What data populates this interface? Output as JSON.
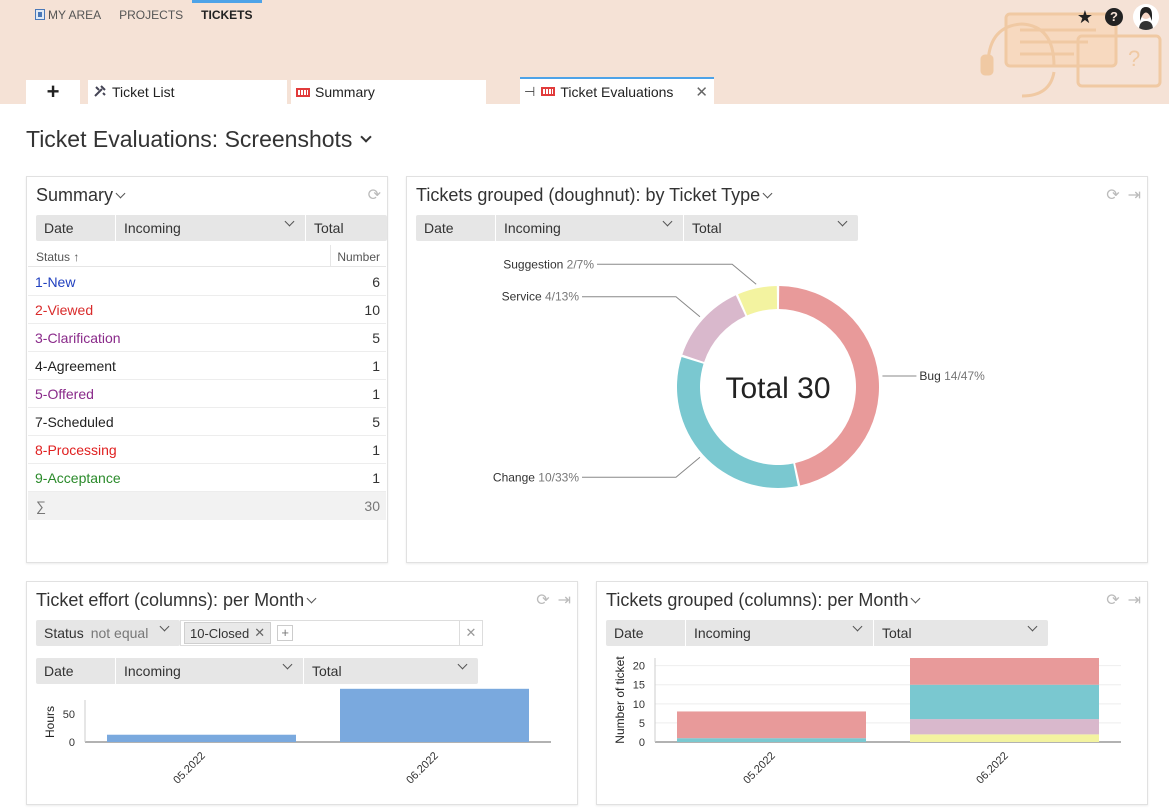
{
  "topnav": {
    "items": [
      {
        "label": "MY AREA"
      },
      {
        "label": "PROJECTS"
      },
      {
        "label": "TICKETS"
      }
    ]
  },
  "tabs": {
    "add_label": "+",
    "items": [
      {
        "label": "Ticket List"
      },
      {
        "label": "Summary"
      },
      {
        "label": "Ticket Evaluations"
      }
    ]
  },
  "page": {
    "title": "Ticket Evaluations: Screenshots"
  },
  "summary_panel": {
    "title": "Summary",
    "filter": {
      "date": "Date",
      "incoming": "Incoming",
      "total": "Total"
    },
    "columns": {
      "status": "Status",
      "number": "Number"
    },
    "rows": [
      {
        "status": "1-New",
        "number": "6",
        "color": "#1f3fbf"
      },
      {
        "status": "2-Viewed",
        "number": "10",
        "color": "#d92b2b"
      },
      {
        "status": "3-Clarification",
        "number": "5",
        "color": "#8a2a8a"
      },
      {
        "status": "4-Agreement",
        "number": "1",
        "color": "#222222"
      },
      {
        "status": "5-Offered",
        "number": "1",
        "color": "#8a2a8a"
      },
      {
        "status": "7-Scheduled",
        "number": "5",
        "color": "#222222"
      },
      {
        "status": "8-Processing",
        "number": "1",
        "color": "#e02020"
      },
      {
        "status": "9-Acceptance",
        "number": "1",
        "color": "#2a8a2a"
      }
    ],
    "total": {
      "symbol": "∑",
      "number": "30"
    }
  },
  "doughnut_panel": {
    "title": "Tickets grouped (doughnut): by Ticket Type",
    "filter": {
      "date": "Date",
      "incoming": "Incoming",
      "total": "Total"
    },
    "center_label": "Total 30"
  },
  "effort_panel": {
    "title": "Ticket effort (columns): per Month",
    "status_filter": {
      "field": "Status",
      "operator": "not equal",
      "tag": "10-Closed"
    },
    "filter": {
      "date": "Date",
      "incoming": "Incoming",
      "total": "Total"
    }
  },
  "grouped_panel": {
    "title": "Tickets grouped (columns): per Month",
    "filter": {
      "date": "Date",
      "incoming": "Incoming",
      "total": "Total"
    }
  },
  "chart_data": [
    {
      "type": "pie",
      "title": "",
      "slices": [
        {
          "name": "Bug",
          "value": 14,
          "label": "14/47%",
          "color": "#e89a9a"
        },
        {
          "name": "Change",
          "value": 10,
          "label": "10/33%",
          "color": "#7ac8d0"
        },
        {
          "name": "Service",
          "value": 4,
          "label": "4/13%",
          "color": "#d9b8cc"
        },
        {
          "name": "Suggestion",
          "value": 2,
          "label": "2/7%",
          "color": "#f3f3a0"
        }
      ],
      "center_text": "Total 30"
    },
    {
      "type": "bar",
      "categories": [
        "05.2022",
        "06.2022"
      ],
      "values": [
        13,
        95
      ],
      "ylabel": "Hours",
      "ylim": [
        0,
        100
      ],
      "yticks": [
        0,
        50
      ],
      "color": "#7aa9de"
    },
    {
      "type": "bar",
      "stacked": true,
      "categories": [
        "05.2022",
        "06.2022"
      ],
      "series": [
        {
          "values": [
            0,
            2
          ],
          "color": "#f3f3a0"
        },
        {
          "values": [
            0,
            4
          ],
          "color": "#d9b8cc"
        },
        {
          "values": [
            1,
            9
          ],
          "color": "#7ac8d0"
        },
        {
          "values": [
            7,
            7
          ],
          "color": "#e89a9a"
        }
      ],
      "ylabel": "Number of ticket",
      "ylim": [
        0,
        22
      ],
      "yticks": [
        0,
        5,
        10,
        15,
        20
      ]
    }
  ]
}
